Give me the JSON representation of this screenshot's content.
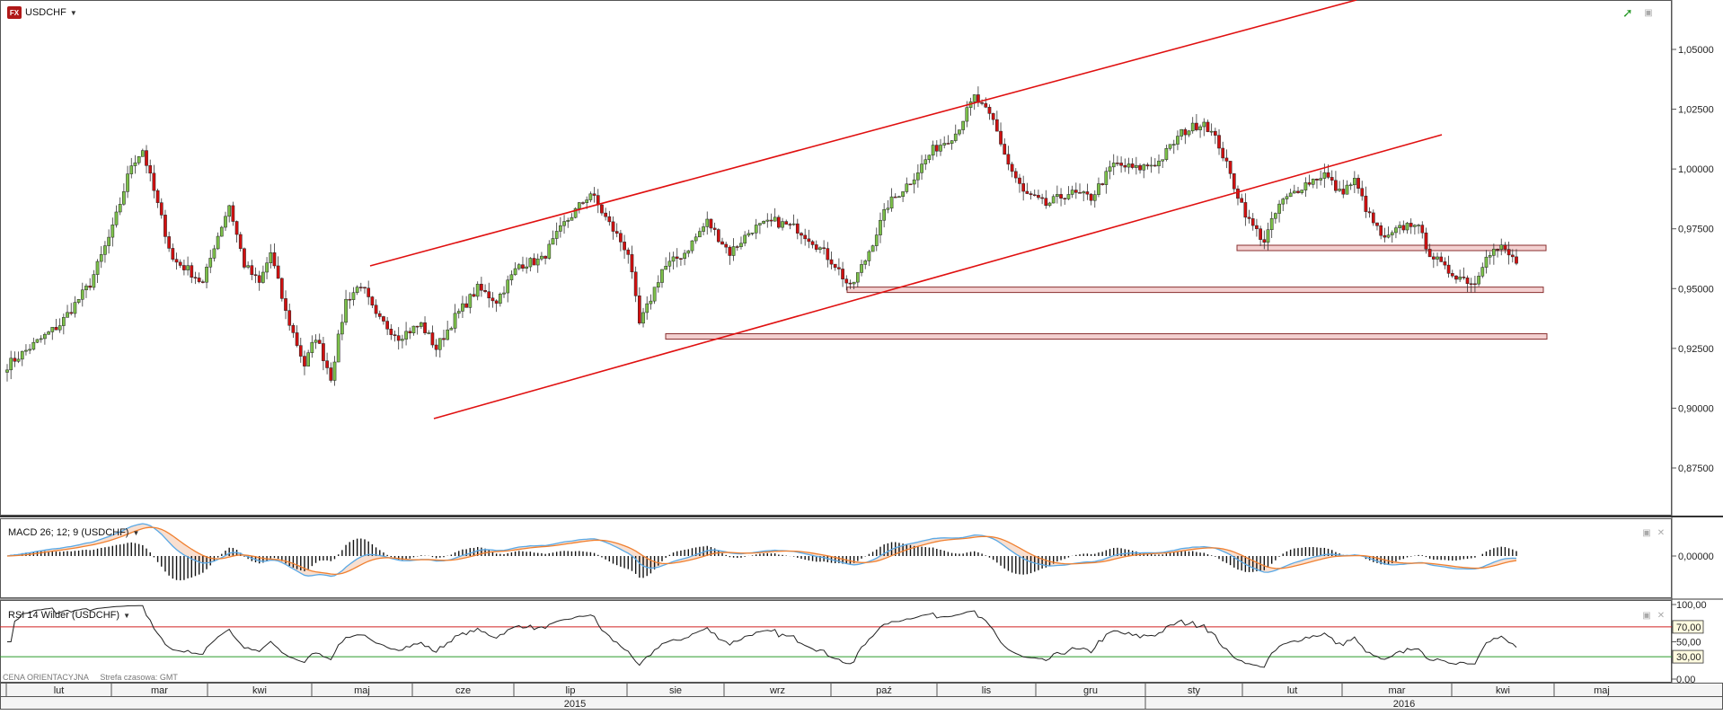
{
  "instrument": "USDCHF",
  "price_panel": {
    "y_ticks": [
      "1,05000",
      "1,02500",
      "1,00000",
      "0,97500",
      "0,95000",
      "0,92500",
      "0,90000",
      "0,87500"
    ]
  },
  "macd_panel": {
    "title": "MACD 26; 12; 9 (USDCHF)",
    "y_tick": "0,00000"
  },
  "rsi_panel": {
    "title": "RSI 14 Wilder (USDCHF)",
    "y_ticks": [
      "100,00",
      "70,00",
      "50,00",
      "30,00",
      "0,00"
    ]
  },
  "footer": {
    "price_type": "CENA ORIENTACYJNA",
    "timezone": "Strefa czasowa: GMT"
  },
  "time_axis": {
    "months": [
      "lut",
      "mar",
      "kwi",
      "maj",
      "cze",
      "lip",
      "sie",
      "wrz",
      "paź",
      "lis",
      "gru",
      "sty",
      "lut",
      "mar",
      "kwi",
      "maj"
    ],
    "years": [
      "2015",
      "2016"
    ]
  },
  "colors": {
    "bull_candle": "#7cc04a",
    "bear_candle": "#d01010",
    "trendline": "#e01010",
    "macd_line": "#5aa9e6",
    "signal_line": "#f08030",
    "rsi_line": "#222222",
    "rsi_upper": "#d02020",
    "rsi_lower": "#2a9a2a",
    "zone_fill": "#f3d0d0"
  },
  "chart_data": [
    {
      "type": "candlestick",
      "title": "USDCHF",
      "ylim": [
        0.865,
        1.06
      ],
      "key_prices": {
        "high": 1.033,
        "low": 0.908,
        "last": 0.961
      },
      "support_zones": [
        0.967,
        0.9495,
        0.93
      ],
      "trend_channel": "upper line from ~0.96 (2015-06) rising to ~1.07; lower line from ~0.895 (2015-06) rising through 0.993 (2016-01) toward 1.014"
    },
    {
      "type": "line",
      "title": "MACD 26; 12; 9 (USDCHF)",
      "series": [
        {
          "name": "MACD"
        },
        {
          "name": "Signal"
        }
      ],
      "zero_level": 0
    },
    {
      "type": "line",
      "title": "RSI 14 Wilder (USDCHF)",
      "ylim": [
        0,
        100
      ],
      "levels": [
        30,
        50,
        70
      ]
    }
  ]
}
